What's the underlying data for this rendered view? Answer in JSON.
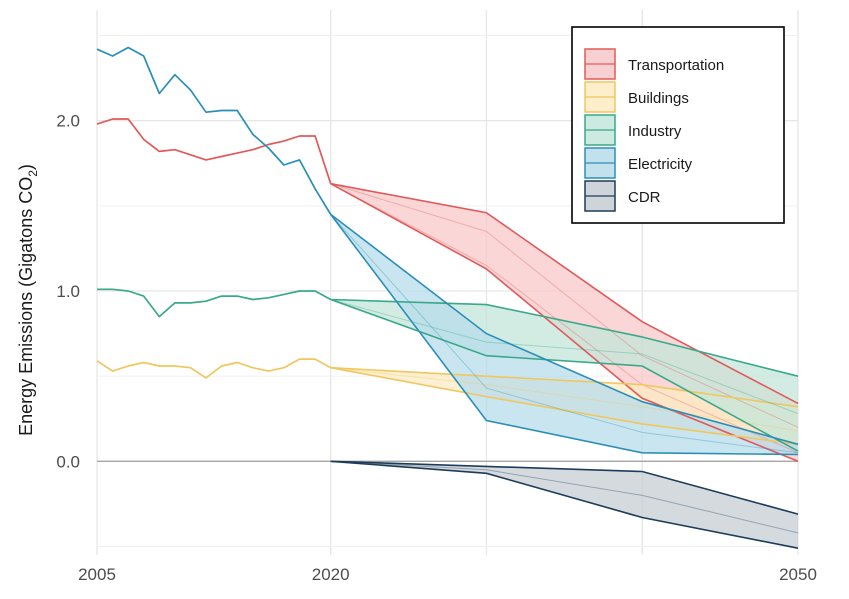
{
  "chart_data": {
    "type": "area",
    "ylabel": "Energy Emissions (Gigatons CO",
    "ylabel_sub": "2",
    "ylabel_close": ")",
    "xlim": [
      2005,
      2050
    ],
    "ylim": [
      -0.55,
      2.65
    ],
    "x_ticks": [
      2005,
      2020,
      2050
    ],
    "x_tick_labels": [
      "2005",
      "2020",
      "2050"
    ],
    "y_ticks": [
      0.0,
      1.0,
      2.0
    ],
    "y_tick_labels": [
      "0.0",
      "1.0",
      "2.0"
    ],
    "x_grid": [
      2005,
      2020,
      2030,
      2040,
      2050
    ],
    "zero_line": 0,
    "legend_position": "top-right",
    "series": [
      {
        "name": "Transportation",
        "color": "#e05a5a",
        "fill": "#f8c8ca",
        "historical": {
          "x": [
            2005,
            2006,
            2007,
            2008,
            2009,
            2010,
            2011,
            2012,
            2013,
            2014,
            2015,
            2016,
            2017,
            2018,
            2019,
            2020
          ],
          "y": [
            1.98,
            2.01,
            2.01,
            1.89,
            1.82,
            1.83,
            1.8,
            1.77,
            1.79,
            1.81,
            1.83,
            1.86,
            1.88,
            1.91,
            1.91,
            1.63
          ]
        },
        "projection": {
          "x": [
            2020,
            2030,
            2040,
            2050
          ],
          "upper": [
            1.63,
            1.46,
            0.82,
            0.34
          ],
          "lower": [
            1.63,
            1.13,
            0.37,
            0.0
          ],
          "paths": [
            [
              1.63,
              1.15,
              0.45,
              0.05
            ],
            [
              1.63,
              1.35,
              0.62,
              0.2
            ]
          ]
        }
      },
      {
        "name": "Buildings",
        "color": "#f0c75e",
        "fill": "#fdebc3",
        "historical": {
          "x": [
            2005,
            2006,
            2007,
            2008,
            2009,
            2010,
            2011,
            2012,
            2013,
            2014,
            2015,
            2016,
            2017,
            2018,
            2019,
            2020
          ],
          "y": [
            0.59,
            0.53,
            0.56,
            0.58,
            0.56,
            0.56,
            0.55,
            0.49,
            0.56,
            0.58,
            0.55,
            0.53,
            0.55,
            0.6,
            0.6,
            0.55
          ]
        },
        "projection": {
          "x": [
            2020,
            2030,
            2040,
            2050
          ],
          "upper": [
            0.55,
            0.5,
            0.45,
            0.32
          ],
          "lower": [
            0.55,
            0.38,
            0.22,
            0.1
          ],
          "paths": [
            [
              0.55,
              0.45,
              0.32,
              0.18
            ]
          ]
        }
      },
      {
        "name": "Industry",
        "color": "#3aa88a",
        "fill": "#c3e6da",
        "historical": {
          "x": [
            2005,
            2006,
            2007,
            2008,
            2009,
            2010,
            2011,
            2012,
            2013,
            2014,
            2015,
            2016,
            2017,
            2018,
            2019,
            2020
          ],
          "y": [
            1.01,
            1.01,
            1.0,
            0.97,
            0.85,
            0.93,
            0.93,
            0.94,
            0.97,
            0.97,
            0.95,
            0.96,
            0.98,
            1.0,
            1.0,
            0.95
          ]
        },
        "projection": {
          "x": [
            2020,
            2030,
            2040,
            2050
          ],
          "upper": [
            0.95,
            0.92,
            0.73,
            0.5
          ],
          "lower": [
            0.95,
            0.62,
            0.56,
            0.06
          ],
          "paths": [
            [
              0.95,
              0.7,
              0.63,
              0.28
            ]
          ]
        }
      },
      {
        "name": "Electricity",
        "color": "#2a8fb8",
        "fill": "#b7dcea",
        "historical": {
          "x": [
            2005,
            2006,
            2007,
            2008,
            2009,
            2010,
            2011,
            2012,
            2013,
            2014,
            2015,
            2016,
            2017,
            2018,
            2019,
            2020
          ],
          "y": [
            2.42,
            2.38,
            2.43,
            2.38,
            2.16,
            2.27,
            2.18,
            2.05,
            2.06,
            2.06,
            1.92,
            1.84,
            1.74,
            1.77,
            1.6,
            1.45
          ]
        },
        "projection": {
          "x": [
            2020,
            2030,
            2040,
            2050
          ],
          "upper": [
            1.45,
            0.75,
            0.35,
            0.1
          ],
          "lower": [
            1.45,
            0.24,
            0.05,
            0.04
          ],
          "paths": [
            [
              1.45,
              0.43,
              0.17,
              0.05
            ]
          ]
        }
      },
      {
        "name": "CDR",
        "color": "#1d3c5a",
        "fill": "#c7cdd4",
        "historical": null,
        "projection": {
          "x": [
            2020,
            2030,
            2040,
            2050
          ],
          "upper": [
            0.0,
            -0.03,
            -0.06,
            -0.31
          ],
          "lower": [
            0.0,
            -0.07,
            -0.33,
            -0.51
          ],
          "paths": [
            [
              0.0,
              -0.05,
              -0.2,
              -0.42
            ]
          ]
        }
      }
    ]
  }
}
